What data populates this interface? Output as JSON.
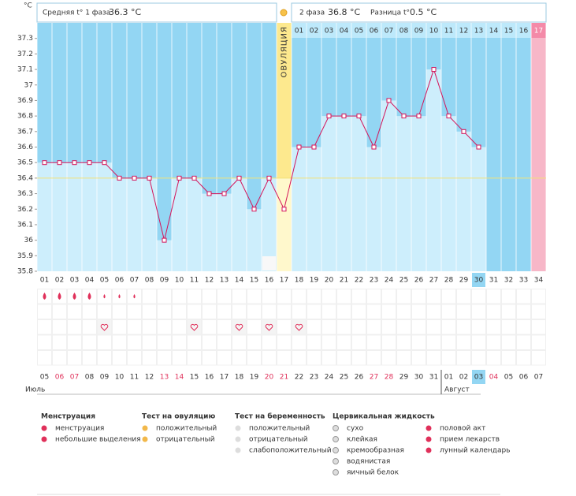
{
  "chart_data": {
    "type": "line",
    "y_unit": "°C",
    "header": {
      "phase1_label": "Средняя t° 1 фаза",
      "phase1_value": "36.3 °C",
      "phase2_label": "2 фаза",
      "phase2_value": "36.8 °C",
      "diff_label": "Разница t°",
      "diff_value": "0.5 °C"
    },
    "ovulation_label": "ОВУЛЯЦИЯ",
    "ovulation_index": 16,
    "next_period_index": 33,
    "today_index": 29,
    "categories": [
      "01",
      "02",
      "03",
      "04",
      "05",
      "06",
      "07",
      "08",
      "09",
      "10",
      "11",
      "12",
      "13",
      "14",
      "15",
      "16",
      "17",
      "18",
      "19",
      "20",
      "21",
      "22",
      "23",
      "24",
      "25",
      "26",
      "27",
      "28",
      "29",
      "30",
      "31",
      "32",
      "33",
      "34"
    ],
    "values": [
      36.5,
      36.5,
      36.5,
      36.5,
      36.5,
      36.4,
      36.4,
      36.4,
      36.0,
      36.4,
      36.4,
      36.3,
      36.3,
      36.4,
      36.2,
      36.4,
      36.2,
      36.6,
      36.6,
      36.8,
      36.8,
      36.8,
      36.6,
      36.9,
      36.8,
      36.8,
      37.1,
      36.8,
      36.7,
      36.6,
      null,
      null,
      null,
      null
    ],
    "coverline": 36.4,
    "line_color": "#d4145a",
    "bar_color": "#cdeefc",
    "background_color": "#93d6f3",
    "phase2_days": [
      "01",
      "02",
      "03",
      "04",
      "05",
      "06",
      "07",
      "08",
      "09",
      "10",
      "11",
      "12",
      "13",
      "14",
      "15",
      "16",
      "17"
    ],
    "ylim": [
      35.8,
      37.4
    ],
    "yticks": [
      35.8,
      35.9,
      36,
      36.1,
      36.2,
      36.3,
      36.4,
      36.5,
      36.6,
      36.7,
      36.8,
      36.9,
      37,
      37.1,
      37.2,
      37.3
    ],
    "dates": [
      "05",
      "06",
      "07",
      "08",
      "09",
      "10",
      "11",
      "12",
      "13",
      "14",
      "15",
      "16",
      "17",
      "18",
      "19",
      "20",
      "21",
      "22",
      "23",
      "24",
      "25",
      "26",
      "27",
      "28",
      "29",
      "30",
      "31",
      "01",
      "02",
      "03",
      "04",
      "05",
      "06",
      "07"
    ],
    "weekend": [
      1,
      2,
      8,
      9,
      15,
      16,
      22,
      23,
      30
    ],
    "months": [
      "Июль",
      "Август"
    ],
    "month_starts": [
      0,
      27
    ],
    "menstruation_heavy": [
      0,
      1,
      2,
      3
    ],
    "menstruation_light": [
      4,
      5,
      6
    ],
    "intercourse_days": [
      4,
      10,
      13,
      15,
      17
    ],
    "moon_days": [
      15
    ],
    "legend": [
      {
        "title": "Менструация",
        "items": [
          "менструация",
          "небольшие выделения"
        ]
      },
      {
        "title": "Тест на овуляцию",
        "items": [
          "положительный",
          "отрицательный"
        ]
      },
      {
        "title": "Тест на беременность",
        "items": [
          "положительный",
          "отрицательный",
          "слабоположительный"
        ]
      },
      {
        "title": "Цервикальная жидкость",
        "items": [
          "сухо",
          "клейкая",
          "кремообразная",
          "водянистая",
          "яичный белок"
        ]
      },
      {
        "items": [
          "половой акт",
          "прием лекарств",
          "лунный календарь"
        ]
      }
    ]
  }
}
